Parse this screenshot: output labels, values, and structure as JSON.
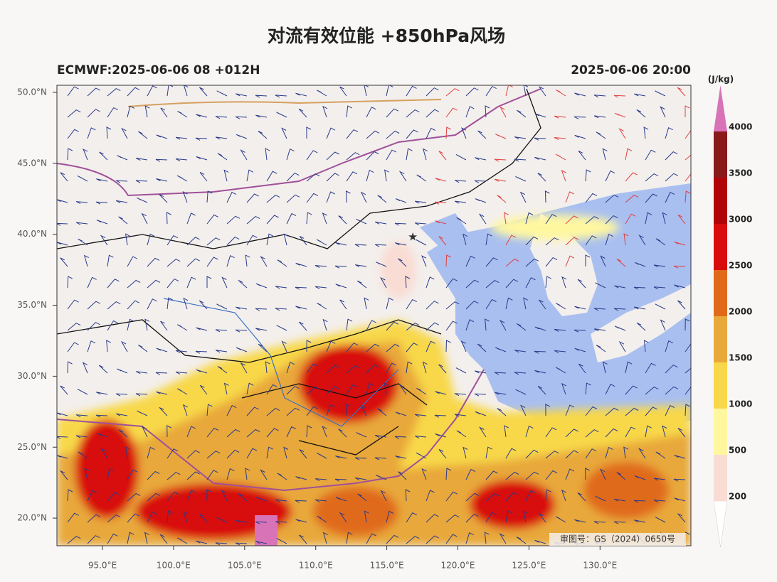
{
  "title": "对流有效位能 +850hPa风场",
  "subtitle_left": "ECMWF:2025-06-06 08 +012H",
  "subtitle_right": "2025-06-06 20:00",
  "map": {
    "lat_labels": [
      "50.0°N",
      "45.0°N",
      "40.0°N",
      "35.0°N",
      "30.0°N",
      "25.0°N",
      "20.0°N"
    ],
    "lon_labels": [
      "95.0°E",
      "100.0°E",
      "105.0°E",
      "110.0°E",
      "115.0°E",
      "120.0°E",
      "125.0°E",
      "130.0°E"
    ],
    "stamp": "审图号：GS（2024）0650号"
  },
  "colorbar": {
    "unit": "(J/kg)",
    "levels": [
      200,
      500,
      1000,
      1500,
      2000,
      2500,
      3000,
      3500,
      4000
    ],
    "colors": [
      "#ffffff",
      "#f9dcd3",
      "#fff7a0",
      "#f8d84a",
      "#e8a83a",
      "#e06a1a",
      "#d80c0c",
      "#b00408",
      "#8a1a1a",
      "#d873b8"
    ]
  }
}
